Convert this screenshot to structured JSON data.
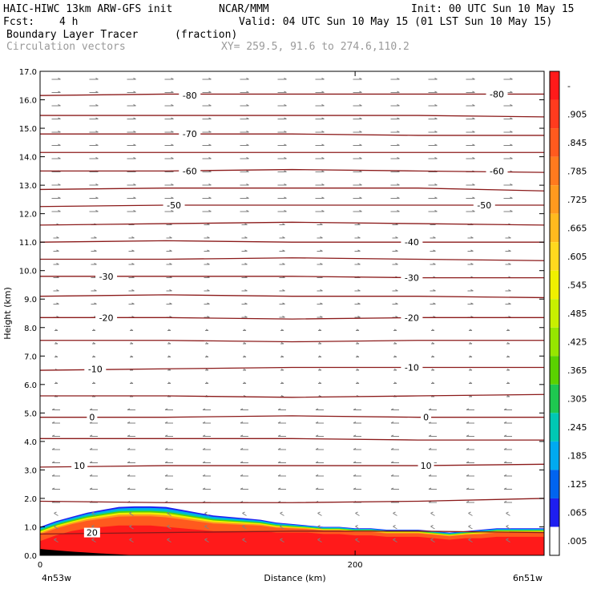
{
  "header": {
    "model": "HAIC-HIWC 13km ARW-GFS init",
    "org": "NCAR/MMM",
    "init": "Init: 00 UTC Sun 10 May 15",
    "fcst_label": "Fcst:",
    "fcst_value": "4 h",
    "valid": "Valid: 04 UTC Sun 10 May 15 (01 LST Sun 10 May 15)",
    "field": "Boundary Layer Tracer",
    "units": "(fraction)",
    "vectors": "Circulation vectors",
    "xy": "XY= 259.5, 91.6 to 274.6,110.2",
    "colors": {
      "contour": "#8b1a1a",
      "vector": "#808080",
      "text": "#000000",
      "gray_text": "#9a9a9a"
    }
  },
  "chart_data": {
    "type": "heatmap",
    "title": "Boundary Layer Tracer",
    "xlabel": "Distance (km)",
    "ylabel": "Height (km)",
    "xlim": [
      0,
      320
    ],
    "ylim": [
      0,
      17
    ],
    "x_ticks": [
      {
        "value": 0,
        "label": "0"
      },
      {
        "value": 200,
        "label": "200"
      }
    ],
    "x_end_labels": [
      "4n53w",
      "6n51w"
    ],
    "y_ticks": [
      "0.0",
      "1.0",
      "2.0",
      "3.0",
      "4.0",
      "5.0",
      "6.0",
      "7.0",
      "8.0",
      "9.0",
      "10.0",
      "11.0",
      "12.0",
      "13.0",
      "14.0",
      "15.0",
      "16.0",
      "17.0"
    ],
    "colorbar": {
      "levels": [
        "-",
        ".905",
        ".845",
        ".785",
        ".725",
        ".665",
        ".605",
        ".545",
        ".485",
        ".425",
        ".365",
        ".305",
        ".245",
        ".185",
        ".125",
        ".065",
        ".005"
      ],
      "colors": [
        "#ff1a1a",
        "#ff3b1e",
        "#ff5a1e",
        "#ff7a1e",
        "#ff9a1e",
        "#ffba1e",
        "#ffd91e",
        "#f0f000",
        "#c8f000",
        "#96e600",
        "#5ad200",
        "#1ec850",
        "#00c8b4",
        "#00aaf0",
        "#0064f0",
        "#1e1ef0",
        "#ffffff"
      ]
    },
    "tracer_profile": {
      "x": [
        0,
        10,
        20,
        30,
        40,
        50,
        60,
        70,
        80,
        90,
        100,
        110,
        120,
        130,
        140,
        150,
        160,
        170,
        180,
        190,
        200,
        210,
        220,
        230,
        240,
        250,
        260,
        270,
        280,
        290,
        300,
        310,
        320
      ],
      "top_height": [
        1.0,
        1.2,
        1.35,
        1.5,
        1.6,
        1.7,
        1.72,
        1.72,
        1.7,
        1.6,
        1.5,
        1.4,
        1.35,
        1.3,
        1.25,
        1.15,
        1.1,
        1.05,
        1.0,
        1.0,
        0.95,
        0.95,
        0.9,
        0.9,
        0.9,
        0.85,
        0.8,
        0.85,
        0.9,
        0.95,
        0.95,
        0.95,
        0.95
      ],
      "core_height": [
        0.5,
        0.7,
        0.85,
        0.95,
        1.0,
        1.05,
        1.05,
        1.05,
        1.0,
        0.95,
        0.9,
        0.85,
        0.85,
        0.85,
        0.85,
        0.8,
        0.8,
        0.8,
        0.75,
        0.75,
        0.7,
        0.7,
        0.65,
        0.65,
        0.65,
        0.6,
        0.55,
        0.6,
        0.6,
        0.65,
        0.65,
        0.65,
        0.65
      ]
    },
    "contours": [
      {
        "level": "-80",
        "y": [
          16.15,
          16.2,
          16.2,
          16.2,
          16.2
        ]
      },
      {
        "level": "",
        "y": [
          15.45,
          15.45,
          15.45,
          15.45,
          15.4
        ]
      },
      {
        "level": "-70",
        "y": [
          14.8,
          14.8,
          14.8,
          14.75,
          14.75
        ]
      },
      {
        "level": "",
        "y": [
          14.15,
          14.15,
          14.15,
          14.15,
          14.15
        ]
      },
      {
        "level": "-60",
        "y": [
          13.5,
          13.5,
          13.55,
          13.5,
          13.45
        ]
      },
      {
        "level": "",
        "y": [
          12.85,
          12.9,
          12.9,
          12.9,
          12.8
        ]
      },
      {
        "level": "-50",
        "y": [
          12.25,
          12.3,
          12.3,
          12.3,
          12.3
        ]
      },
      {
        "level": "",
        "y": [
          11.6,
          11.65,
          11.7,
          11.65,
          11.6
        ]
      },
      {
        "level": "-40",
        "y": [
          11.0,
          11.05,
          11.0,
          11.0,
          11.0
        ]
      },
      {
        "level": "",
        "y": [
          10.4,
          10.4,
          10.45,
          10.4,
          10.35
        ]
      },
      {
        "level": "-30",
        "y": [
          9.8,
          9.8,
          9.8,
          9.75,
          9.75
        ]
      },
      {
        "level": "",
        "y": [
          9.1,
          9.15,
          9.1,
          9.1,
          9.05
        ]
      },
      {
        "level": "-20",
        "y": [
          8.35,
          8.35,
          8.3,
          8.35,
          8.35
        ]
      },
      {
        "level": "",
        "y": [
          7.55,
          7.55,
          7.5,
          7.55,
          7.55
        ]
      },
      {
        "level": "-10",
        "y": [
          6.5,
          6.55,
          6.6,
          6.6,
          6.6
        ]
      },
      {
        "level": "",
        "y": [
          5.6,
          5.6,
          5.55,
          5.6,
          5.65
        ]
      },
      {
        "level": "0",
        "y": [
          4.85,
          4.85,
          4.9,
          4.85,
          4.85
        ]
      },
      {
        "level": "",
        "y": [
          4.1,
          4.1,
          4.1,
          4.05,
          4.05
        ]
      },
      {
        "level": "10",
        "y": [
          3.1,
          3.15,
          3.15,
          3.15,
          3.2
        ]
      },
      {
        "level": "",
        "y": [
          1.9,
          1.85,
          1.85,
          1.9,
          2.0
        ]
      },
      {
        "level": "20",
        "y": [
          0.75,
          0.8,
          0.85,
          0.85,
          0.8
        ]
      }
    ],
    "contour_x": [
      0,
      80,
      160,
      240,
      320
    ],
    "contour_labels": [
      {
        "text": "-80",
        "x": 95,
        "y": 16.15
      },
      {
        "text": "-80",
        "x": 290,
        "y": 16.2
      },
      {
        "text": "-70",
        "x": 95,
        "y": 14.8
      },
      {
        "text": "-60",
        "x": 95,
        "y": 13.5
      },
      {
        "text": "-60",
        "x": 290,
        "y": 13.5
      },
      {
        "text": "-50",
        "x": 85,
        "y": 12.3
      },
      {
        "text": "-50",
        "x": 282,
        "y": 12.3
      },
      {
        "text": "-40",
        "x": 236,
        "y": 11.0
      },
      {
        "text": "-30",
        "x": 42,
        "y": 9.8
      },
      {
        "text": "-30",
        "x": 236,
        "y": 9.75
      },
      {
        "text": "-20",
        "x": 42,
        "y": 8.35
      },
      {
        "text": "-20",
        "x": 236,
        "y": 8.35
      },
      {
        "text": "-10",
        "x": 35,
        "y": 6.55
      },
      {
        "text": "-10",
        "x": 236,
        "y": 6.6
      },
      {
        "text": "0",
        "x": 33,
        "y": 4.85
      },
      {
        "text": "0",
        "x": 245,
        "y": 4.85
      },
      {
        "text": "10",
        "x": 25,
        "y": 3.15
      },
      {
        "text": "10",
        "x": 245,
        "y": 3.15
      },
      {
        "text": "20",
        "x": 33,
        "y": 0.8
      }
    ]
  }
}
